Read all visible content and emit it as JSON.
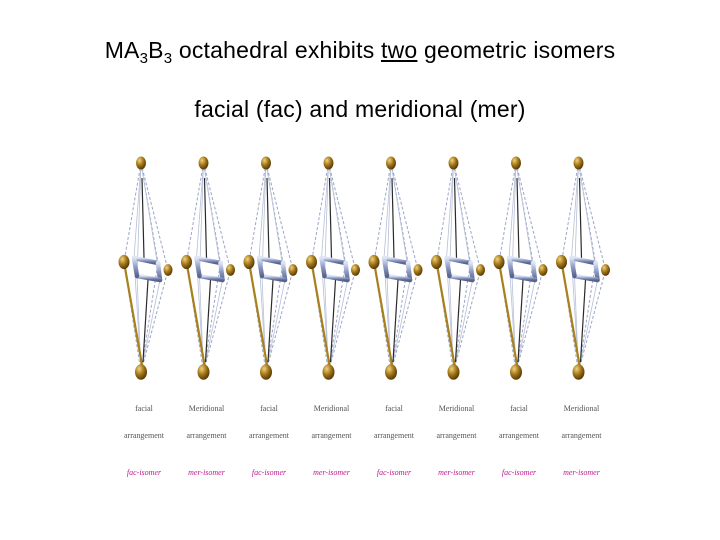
{
  "title": {
    "line1": {
      "prefix": "MA",
      "sub1": "3",
      "mid": "B",
      "sub2": "3",
      "before_underline": " octahedral exhibits ",
      "underlined": "two",
      "after_underline": " geometric isomers"
    },
    "line2": "facial (fac) and meridional (mer)"
  },
  "figure": {
    "structures": [
      {
        "type": "fac",
        "labels": [
          "facial",
          "arrangement",
          "fac-isomer"
        ]
      },
      {
        "type": "mer",
        "labels": [
          "Meridional",
          "arrangement",
          "mer-isomer"
        ]
      },
      {
        "type": "fac",
        "labels": [
          "facial",
          "arrangement",
          "fac-isomer"
        ]
      },
      {
        "type": "mer",
        "labels": [
          "Meridional",
          "arrangement",
          "mer-isomer"
        ]
      },
      {
        "type": "fac",
        "labels": [
          "facial",
          "arrangement",
          "fac-isomer"
        ]
      },
      {
        "type": "mer",
        "labels": [
          "Meridional",
          "arrangement",
          "mer-isomer"
        ]
      },
      {
        "type": "fac",
        "labels": [
          "facial",
          "arrangement",
          "fac-isomer"
        ]
      },
      {
        "type": "mer",
        "labels": [
          "Meridional",
          "arrangement",
          "mer-isomer"
        ]
      }
    ],
    "colors": {
      "ligand": "#a07418",
      "ligand_highlight": "#f2d27a",
      "ligand_shadow": "#5a3c08",
      "square_bond": "#8e9cc6",
      "face_edge": "#9aa6c8",
      "gold_bond": "#a8801e",
      "dark_bond": "#2a2a2a",
      "label_black": "#555555",
      "label_magenta": "#c0198f"
    }
  }
}
